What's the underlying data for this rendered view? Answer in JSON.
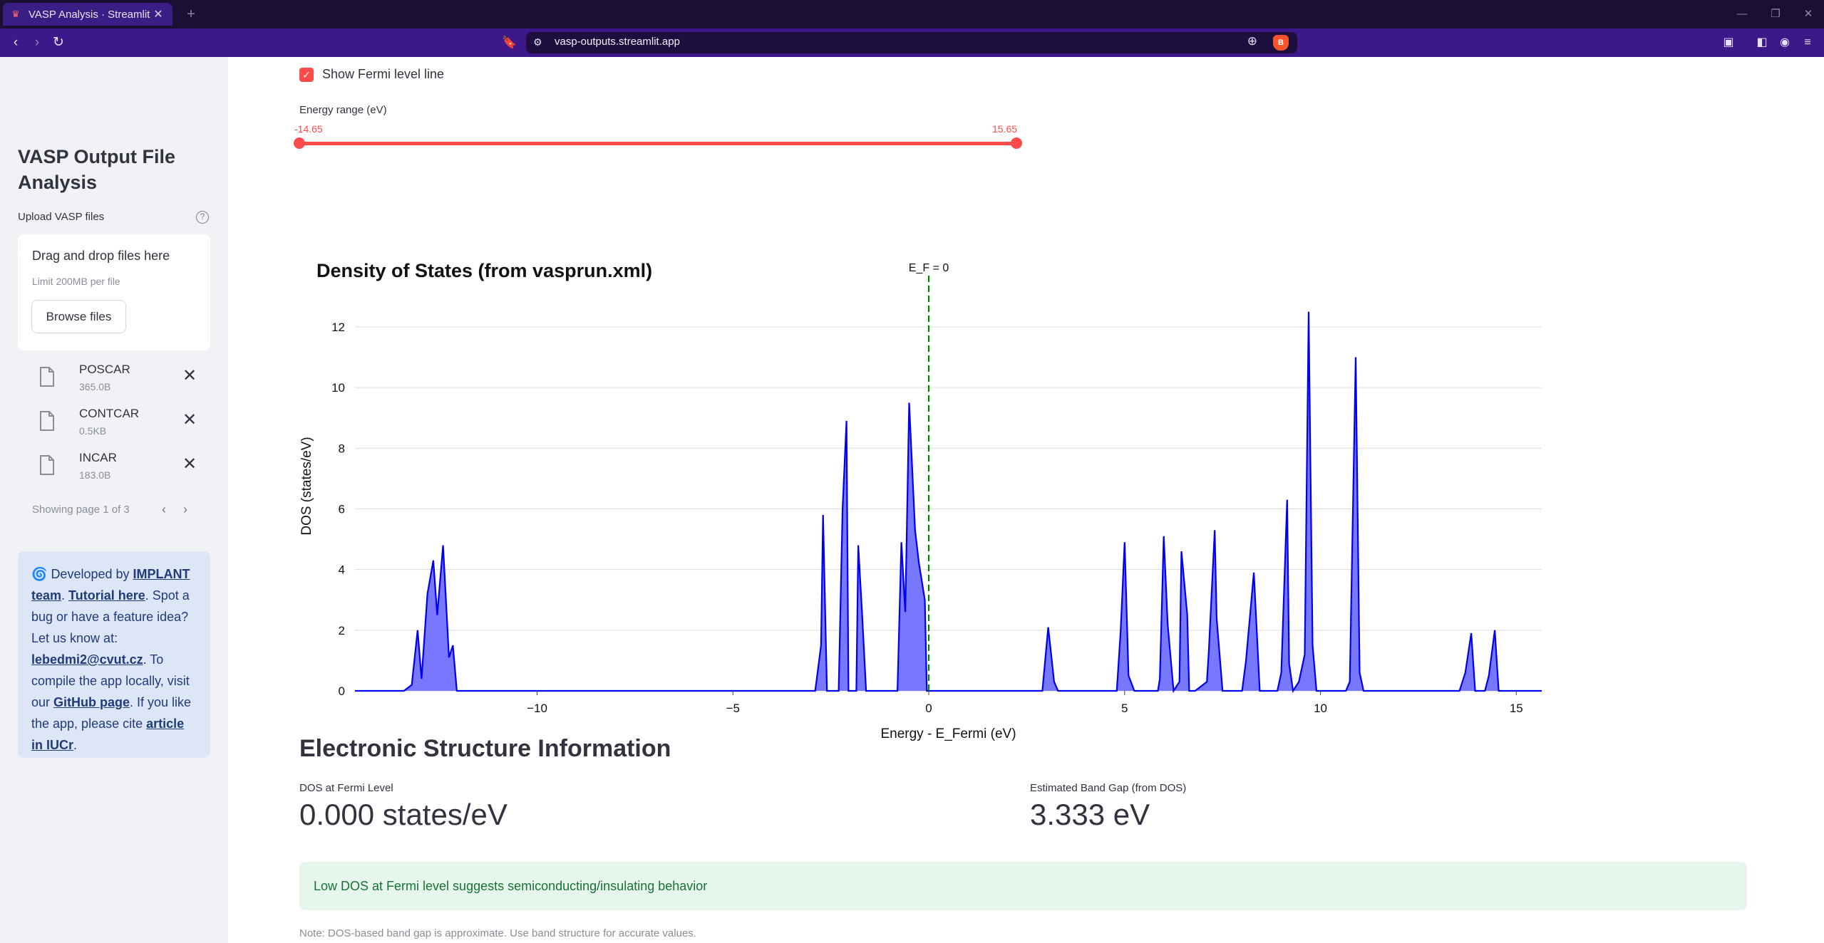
{
  "browser": {
    "tab_title": "VASP Analysis · Streamlit",
    "url": "vasp-outputs.streamlit.app"
  },
  "sidebar": {
    "app_title": "VASP Output File Analysis",
    "upload_label": "Upload VASP files",
    "dropzone_text": "Drag and drop files here",
    "dropzone_limit": "Limit 200MB per file",
    "browse_label": "Browse files",
    "files": [
      {
        "name": "POSCAR",
        "size": "365.0B"
      },
      {
        "name": "CONTCAR",
        "size": "0.5KB"
      },
      {
        "name": "INCAR",
        "size": "183.0B"
      }
    ],
    "pagination": "Showing page 1 of 3",
    "info": {
      "prefix": "Developed by ",
      "team_link": "IMPLANT team",
      "tutorial_link": "Tutorial here",
      "mid_text": ". Spot a bug or have a feature idea? Let us know at: ",
      "email_link": "lebedmi2@cvut.cz",
      "compile_text": ". To compile the app locally, visit our ",
      "github_link": "GitHub page",
      "cite_text": ". If you like the app, please cite ",
      "article_link": "article in IUCr"
    }
  },
  "main": {
    "fermi_checkbox_label": "Show Fermi level line",
    "fermi_checked": true,
    "energy_slider": {
      "label": "Energy range (eV)",
      "min": "-14.65",
      "max": "15.65"
    },
    "section_title": "Electronic Structure Information",
    "metrics": [
      {
        "label": "DOS at Fermi Level",
        "value": "0.000 states/eV"
      },
      {
        "label": "Estimated Band Gap (from DOS)",
        "value": "3.333 eV"
      }
    ],
    "success_message": "Low DOS at Fermi level suggests semiconducting/insulating behavior",
    "note": "Note: DOS-based band gap is approximate. Use band structure for accurate values."
  },
  "chart_data": {
    "type": "area",
    "title": "Density of States (from vasprun.xml)",
    "xlabel": "Energy - E_Fermi (eV)",
    "ylabel": "DOS (states/eV)",
    "xlim": [
      -14.65,
      15.65
    ],
    "ylim": [
      0,
      13.5
    ],
    "xticks": [
      -10,
      -5,
      0,
      5,
      10,
      15
    ],
    "xtick_labels": [
      "−10",
      "−5",
      "0",
      "5",
      "10",
      "15"
    ],
    "yticks": [
      0,
      2,
      4,
      6,
      8,
      10,
      12
    ],
    "fermi_annotation": "E_F = 0",
    "fermi_line_color": "#008000",
    "line_color": "#0000ee",
    "fill_color": "#7777ff",
    "grid": true,
    "x": [
      -14.65,
      -13.4,
      -13.2,
      -13.05,
      -12.95,
      -12.8,
      -12.65,
      -12.55,
      -12.4,
      -12.25,
      -12.15,
      -12.05,
      -11.9,
      -11.75,
      -2.9,
      -2.75,
      -2.7,
      -2.6,
      -2.3,
      -2.2,
      -2.1,
      -2.05,
      -1.85,
      -1.8,
      -1.7,
      -1.6,
      -1.5,
      -0.8,
      -0.7,
      -0.6,
      -0.5,
      -0.35,
      -0.25,
      -0.1,
      -0.05,
      2.9,
      3.05,
      3.2,
      3.3,
      4.8,
      4.9,
      5.0,
      5.1,
      5.25,
      5.85,
      5.9,
      6.0,
      6.1,
      6.25,
      6.4,
      6.45,
      6.6,
      6.65,
      6.8,
      7.1,
      7.15,
      7.3,
      7.35,
      7.5,
      8.0,
      8.1,
      8.3,
      8.45,
      8.9,
      9.0,
      9.15,
      9.2,
      9.3,
      9.45,
      9.6,
      9.7,
      9.8,
      9.9,
      10.65,
      10.75,
      10.9,
      11.0,
      11.1,
      13.25,
      13.55,
      13.7,
      13.85,
      13.95,
      14.2,
      14.3,
      14.45,
      14.55,
      15.65
    ],
    "y": [
      0,
      0,
      0.2,
      2,
      0.4,
      3.2,
      4.3,
      2.5,
      4.8,
      1.1,
      1.5,
      0,
      0,
      0,
      0,
      1.5,
      5.8,
      0,
      0,
      6,
      8.9,
      0,
      0,
      4.8,
      2.5,
      0,
      0,
      0,
      4.9,
      2.6,
      9.5,
      5.3,
      4.2,
      3,
      0,
      0,
      2.1,
      0.3,
      0,
      0,
      2,
      4.9,
      0.5,
      0,
      0,
      0.4,
      5.1,
      2.2,
      0,
      0.3,
      4.6,
      2.5,
      0,
      0,
      0.3,
      1.3,
      5.3,
      2.4,
      0,
      0,
      1,
      3.9,
      0,
      0,
      0.6,
      6.3,
      0.9,
      0,
      0.3,
      1.2,
      12.5,
      1.5,
      0,
      0,
      0.3,
      11,
      0.6,
      0,
      0,
      0,
      0.6,
      1.9,
      0,
      0,
      0.5,
      2,
      0,
      0
    ]
  },
  "colors": {
    "accent": "#ff4b4b",
    "sidebar_bg": "#f0f2f6",
    "info_bg": "#dde6f7",
    "success_bg": "#e7f6ec"
  }
}
